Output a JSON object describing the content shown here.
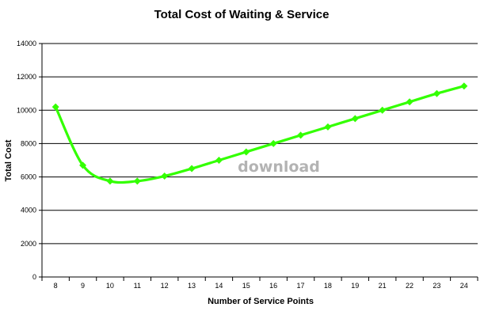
{
  "chart_data": {
    "type": "line",
    "title": "Total Cost of Waiting & Service",
    "xlabel": "Number of Service Points",
    "ylabel": "Total Cost",
    "categories": [
      "8",
      "9",
      "10",
      "11",
      "12",
      "13",
      "14",
      "15",
      "16",
      "17",
      "18",
      "19",
      "21",
      "22",
      "23",
      "24"
    ],
    "series": [
      {
        "values": [
          10200,
          6700,
          5750,
          5750,
          6050,
          6500,
          7000,
          7500,
          8000,
          8500,
          9000,
          9500,
          10000,
          10500,
          11000,
          11450
        ]
      }
    ],
    "ylim": [
      0,
      14000
    ],
    "yticks": [
      "0",
      "2000",
      "4000",
      "6000",
      "8000",
      "10000",
      "12000",
      "14000"
    ],
    "grid": true,
    "legend": "none",
    "line_color": "#33ff00",
    "marker": "diamond"
  },
  "watermark": "download"
}
